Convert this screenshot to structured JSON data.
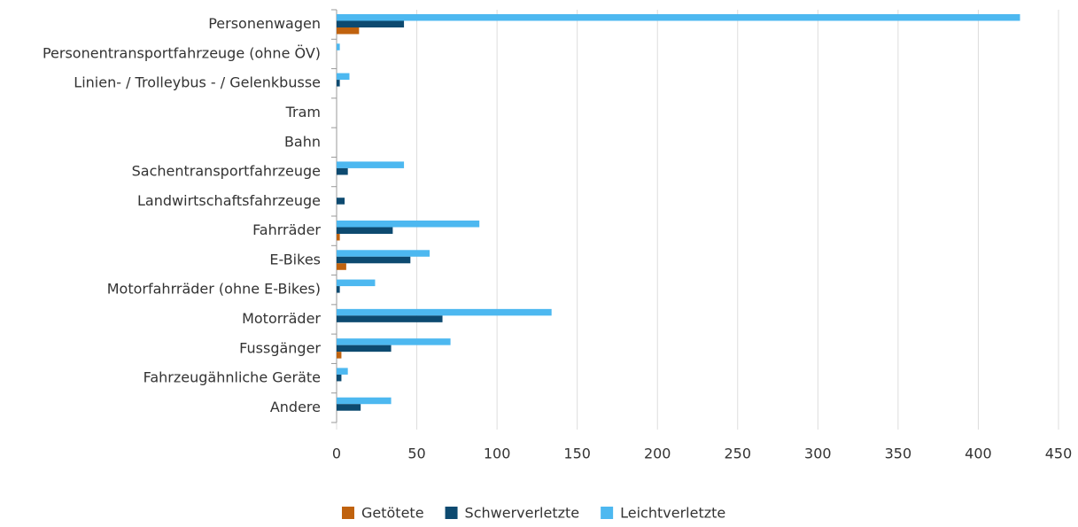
{
  "chart_data": {
    "type": "hbar",
    "categories": [
      "Personenwagen",
      "Personentransportfahrzeuge (ohne ÖV)",
      "Linien- / Trolleybus - / Gelenkbusse",
      "Tram",
      "Bahn",
      "Sachentransportfahrzeuge",
      "Landwirtschaftsfahrzeuge",
      "Fahrräder",
      "E-Bikes",
      "Motorfahrräder (ohne E-Bikes)",
      "Motorräder",
      "Fussgänger",
      "Fahrzeugähnliche Geräte",
      "Andere"
    ],
    "series": [
      {
        "name": "Getötete",
        "color": "#c0620e",
        "values": [
          14,
          0,
          0,
          0,
          0,
          0,
          0,
          2,
          6,
          0,
          0,
          3,
          0,
          0
        ]
      },
      {
        "name": "Schwerverletzte",
        "color": "#0d4a70",
        "values": [
          42,
          0,
          2,
          0,
          0,
          7,
          5,
          35,
          46,
          2,
          66,
          34,
          3,
          15
        ]
      },
      {
        "name": "Leichtverletzte",
        "color": "#4db8f0",
        "values": [
          426,
          2,
          8,
          0,
          0,
          42,
          0,
          89,
          58,
          24,
          134,
          71,
          7,
          34
        ]
      }
    ],
    "xlim": [
      0,
      450
    ],
    "xticks": [
      0,
      50,
      100,
      150,
      200,
      250,
      300,
      350,
      400,
      450
    ],
    "grid": true,
    "legend": "bottom"
  }
}
